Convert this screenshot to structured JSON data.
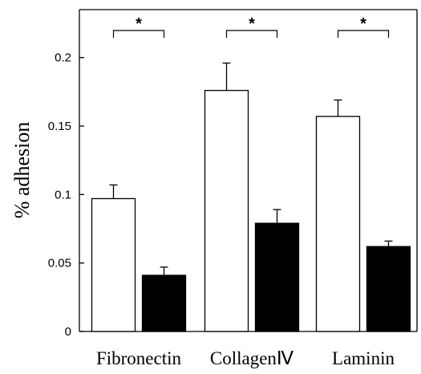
{
  "chart_data": {
    "type": "bar",
    "title": "",
    "xlabel": "",
    "ylabel": "% adhesion",
    "ylim": [
      0,
      0.235
    ],
    "yticks": [
      0,
      0.05,
      0.1,
      0.15,
      0.2
    ],
    "ytick_labels": [
      "0",
      "0.05",
      "0.1",
      "0.15",
      "0.2"
    ],
    "categories": [
      "Fibronectin",
      "CollagenⅣ",
      "Laminin"
    ],
    "series": [
      {
        "fill": "#ffffff",
        "values": [
          0.097,
          0.176,
          0.157
        ],
        "errors": [
          0.01,
          0.02,
          0.012
        ]
      },
      {
        "fill": "#000000",
        "values": [
          0.041,
          0.079,
          0.062
        ],
        "errors": [
          0.006,
          0.01,
          0.004
        ]
      }
    ],
    "significance": [
      "*",
      "*",
      "*"
    ],
    "grid": false,
    "legend": "none"
  }
}
